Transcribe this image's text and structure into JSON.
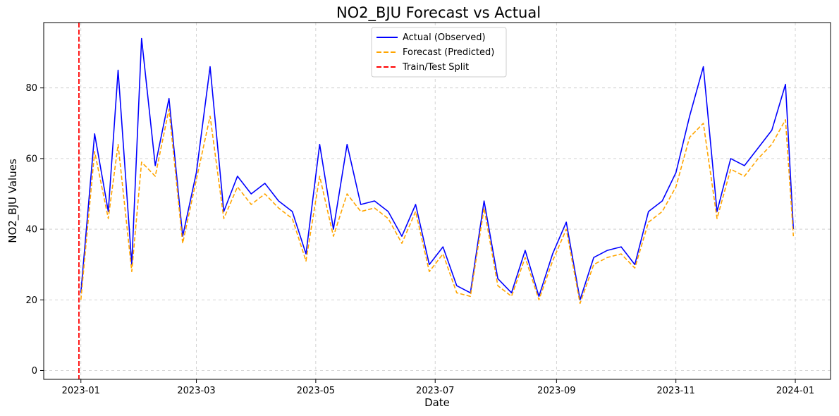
{
  "chart_data": {
    "type": "line",
    "title": "NO2_BJU Forecast vs Actual",
    "xlabel": "Date",
    "ylabel": "NO2_BJU Values",
    "xlim": [
      "2022-12-13",
      "2024-01-19"
    ],
    "ylim": [
      -2.5,
      98.5
    ],
    "x_ticks": [
      "2023-01",
      "2023-03",
      "2023-05",
      "2023-07",
      "2023-09",
      "2023-11",
      "2024-01"
    ],
    "y_ticks": [
      0,
      20,
      40,
      60,
      80
    ],
    "grid": true,
    "legend": "upper center",
    "split_date": "2022-12-31",
    "series": [
      {
        "name": "Actual (Observed)",
        "color": "#0000ff",
        "style": "solid",
        "x": [
          "2023-01-01",
          "2023-01-08",
          "2023-01-15",
          "2023-01-20",
          "2023-01-27",
          "2023-02-01",
          "2023-02-08",
          "2023-02-15",
          "2023-02-22",
          "2023-03-01",
          "2023-03-08",
          "2023-03-15",
          "2023-03-22",
          "2023-03-29",
          "2023-04-05",
          "2023-04-12",
          "2023-04-19",
          "2023-04-26",
          "2023-05-03",
          "2023-05-10",
          "2023-05-17",
          "2023-05-24",
          "2023-05-31",
          "2023-06-07",
          "2023-06-14",
          "2023-06-21",
          "2023-06-28",
          "2023-07-05",
          "2023-07-12",
          "2023-07-19",
          "2023-07-26",
          "2023-08-02",
          "2023-08-09",
          "2023-08-16",
          "2023-08-23",
          "2023-08-30",
          "2023-09-06",
          "2023-09-13",
          "2023-09-20",
          "2023-09-27",
          "2023-10-04",
          "2023-10-11",
          "2023-10-18",
          "2023-10-25",
          "2023-11-01",
          "2023-11-08",
          "2023-11-15",
          "2023-11-22",
          "2023-11-29",
          "2023-12-06",
          "2023-12-13",
          "2023-12-20",
          "2023-12-27",
          "2023-12-31"
        ],
        "values": [
          22,
          67,
          45,
          85,
          30,
          94,
          58,
          77,
          38,
          56,
          86,
          45,
          55,
          50,
          53,
          48,
          45,
          33,
          64,
          40,
          64,
          47,
          48,
          45,
          38,
          47,
          30,
          35,
          24,
          22,
          48,
          26,
          22,
          34,
          21,
          33,
          42,
          20,
          32,
          34,
          35,
          30,
          45,
          48,
          56,
          72,
          86,
          45,
          60,
          58,
          63,
          68,
          81,
          40
        ]
      },
      {
        "name": "Forecast (Predicted)",
        "color": "#ffa500",
        "style": "dashed",
        "x": [
          "2023-01-01",
          "2023-01-08",
          "2023-01-15",
          "2023-01-20",
          "2023-01-27",
          "2023-02-01",
          "2023-02-08",
          "2023-02-15",
          "2023-02-22",
          "2023-03-01",
          "2023-03-08",
          "2023-03-15",
          "2023-03-22",
          "2023-03-29",
          "2023-04-05",
          "2023-04-12",
          "2023-04-19",
          "2023-04-26",
          "2023-05-03",
          "2023-05-10",
          "2023-05-17",
          "2023-05-24",
          "2023-05-31",
          "2023-06-07",
          "2023-06-14",
          "2023-06-21",
          "2023-06-28",
          "2023-07-05",
          "2023-07-12",
          "2023-07-19",
          "2023-07-26",
          "2023-08-02",
          "2023-08-09",
          "2023-08-16",
          "2023-08-23",
          "2023-08-30",
          "2023-09-06",
          "2023-09-13",
          "2023-09-20",
          "2023-09-27",
          "2023-10-04",
          "2023-10-11",
          "2023-10-18",
          "2023-10-25",
          "2023-11-01",
          "2023-11-08",
          "2023-11-15",
          "2023-11-22",
          "2023-11-29",
          "2023-12-06",
          "2023-12-13",
          "2023-12-20",
          "2023-12-27",
          "2023-12-31"
        ],
        "values": [
          20,
          62,
          43,
          64,
          28,
          59,
          55,
          74,
          36,
          54,
          72,
          43,
          52,
          47,
          50,
          46,
          43,
          31,
          55,
          38,
          50,
          45,
          46,
          43,
          36,
          45,
          28,
          33,
          22,
          21,
          46,
          24,
          21,
          32,
          20,
          31,
          40,
          19,
          30,
          32,
          33,
          29,
          42,
          45,
          52,
          66,
          70,
          43,
          57,
          55,
          60,
          64,
          71,
          38
        ]
      }
    ],
    "split_series": {
      "name": "Train/Test Split",
      "color": "#ff0000",
      "style": "dashed"
    }
  }
}
